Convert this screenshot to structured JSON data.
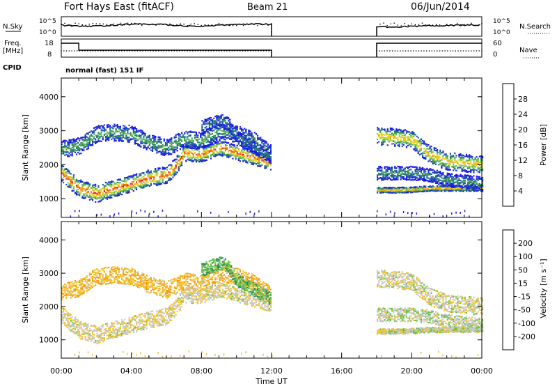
{
  "header": {
    "title": "Fort Hays East (fitACF)",
    "beam": "Beam 21",
    "date": "06/Jun/2014"
  },
  "status_panels": {
    "nsky_label": "N.Sky",
    "nsearch_label": "N.Search",
    "noise_ticks": [
      "10^5",
      "10^0"
    ],
    "freq_label": "Freq.",
    "freq_unit": "[MHz]",
    "freq_ticks": [
      "18",
      "8"
    ],
    "nave_label": "Nave",
    "nave_ticks": [
      "60",
      "0"
    ],
    "cpid_label": "CPID",
    "cpid_text": "normal (fast) 151 IF"
  },
  "x_axis": {
    "label": "Time UT",
    "ticks": [
      "00:00",
      "04:00",
      "08:00",
      "12:00",
      "16:00",
      "20:00",
      "00:00"
    ]
  },
  "colors": {
    "power": [
      "#1a1ae6",
      "#1f4fb4",
      "#2e8b57",
      "#5fb35f",
      "#a8d43c",
      "#f2d21e",
      "#f59a14",
      "#ef5a10",
      "#e0110e"
    ],
    "velocity": [
      "#e01010",
      "#f05a0a",
      "#f59a14",
      "#f2c42a",
      "#c8c8c8",
      "#6bc24a",
      "#2e8b57",
      "#1f4fb4",
      "#1a1ae6"
    ]
  },
  "chart_data": [
    {
      "type": "heatmap",
      "title": "",
      "xlabel": "",
      "ylabel": "Slant Range [km]",
      "xlim": [
        0,
        24
      ],
      "ylim": [
        450,
        4550
      ],
      "yticks": [
        "1000",
        "2000",
        "3000",
        "4000"
      ],
      "colorbar": {
        "label": "Power [dB]",
        "ticks": [
          "28",
          "24",
          "20",
          "16",
          "12",
          "8",
          "4"
        ],
        "range": [
          0,
          32
        ]
      },
      "bands": [
        {
          "t": [
            0,
            1,
            2,
            3,
            4,
            5,
            6,
            6.5,
            7,
            8,
            9,
            10,
            11,
            12
          ],
          "center": [
            1750,
            1300,
            1150,
            1300,
            1450,
            1600,
            1700,
            1950,
            2350,
            2300,
            2500,
            2350,
            2200,
            2050
          ],
          "width": [
            260,
            260,
            260,
            250,
            250,
            250,
            250,
            250,
            250,
            220,
            220,
            220,
            220,
            220
          ],
          "peak_power": 28
        },
        {
          "t": [
            0,
            1,
            2,
            3,
            4,
            5,
            6,
            7,
            8,
            9,
            10,
            11,
            12
          ],
          "center": [
            2450,
            2550,
            2900,
            2950,
            2900,
            2650,
            2500,
            2750,
            2700,
            3000,
            2900,
            2700,
            2300
          ],
          "width": [
            250,
            250,
            250,
            250,
            250,
            250,
            250,
            250,
            250,
            250,
            250,
            250,
            250
          ],
          "peak_power": 12
        },
        {
          "t": [
            8,
            9,
            9.5,
            10,
            11,
            12
          ],
          "center": [
            3100,
            3300,
            3200,
            2800,
            2500,
            2200
          ],
          "width": [
            200,
            200,
            200,
            200,
            200,
            200
          ],
          "peak_power": 8
        },
        {
          "t": [
            18,
            19,
            20,
            21,
            22,
            23,
            24
          ],
          "center": [
            1250,
            1250,
            1260,
            1300,
            1300,
            1300,
            1300
          ],
          "width": [
            80,
            80,
            80,
            80,
            80,
            80,
            80
          ],
          "peak_power": 24
        },
        {
          "t": [
            18,
            19,
            20,
            20.5,
            21,
            22,
            23,
            24
          ],
          "center": [
            2850,
            2800,
            2750,
            2500,
            2300,
            2100,
            2050,
            2000
          ],
          "width": [
            260,
            260,
            260,
            260,
            260,
            260,
            260,
            260
          ],
          "peak_power": 22
        },
        {
          "t": [
            18,
            19,
            20,
            21,
            22,
            24
          ],
          "center": [
            1750,
            1750,
            1750,
            1700,
            1550,
            1450
          ],
          "width": [
            200,
            200,
            200,
            200,
            200,
            200
          ],
          "peak_power": 10
        }
      ],
      "gap_hours": [
        12,
        18
      ]
    },
    {
      "type": "heatmap",
      "title": "",
      "xlabel": "Time UT",
      "ylabel": "Slant Range [km]",
      "xlim": [
        0,
        24
      ],
      "ylim": [
        450,
        4550
      ],
      "yticks": [
        "1000",
        "2000",
        "3000",
        "4000"
      ],
      "colorbar": {
        "label": "Velocity [m s⁻¹]",
        "ticks": [
          "200",
          "100",
          "50",
          "15",
          "-15",
          "-50",
          "-100",
          "-200"
        ],
        "range": [
          -250,
          250
        ]
      },
      "bands": [
        {
          "t": [
            0,
            1,
            2,
            3,
            4,
            5,
            6,
            6.5,
            7,
            8,
            9,
            10,
            11,
            12
          ],
          "center": [
            1750,
            1300,
            1150,
            1300,
            1450,
            1600,
            1700,
            1950,
            2350,
            2300,
            2500,
            2350,
            2200,
            2050
          ],
          "width": [
            260,
            260,
            260,
            250,
            250,
            250,
            250,
            250,
            250,
            220,
            220,
            220,
            220,
            220
          ],
          "velocity": -10
        },
        {
          "t": [
            0,
            1,
            2,
            3,
            4,
            5,
            6,
            7,
            8,
            9,
            10,
            11,
            12
          ],
          "center": [
            2450,
            2550,
            2900,
            2950,
            2900,
            2650,
            2500,
            2750,
            2700,
            3000,
            2900,
            2700,
            2300
          ],
          "width": [
            250,
            250,
            250,
            250,
            250,
            250,
            250,
            250,
            250,
            250,
            250,
            250,
            250
          ],
          "velocity": -40
        },
        {
          "t": [
            8,
            9,
            9.5,
            10,
            11,
            12
          ],
          "center": [
            3100,
            3300,
            3200,
            2800,
            2500,
            2200
          ],
          "width": [
            200,
            200,
            200,
            200,
            200,
            200
          ],
          "velocity": 40
        },
        {
          "t": [
            18,
            19,
            20,
            21,
            22,
            23,
            24
          ],
          "center": [
            1250,
            1250,
            1260,
            1300,
            1300,
            1300,
            1300
          ],
          "width": [
            80,
            80,
            80,
            80,
            80,
            80,
            80
          ],
          "velocity": 0
        },
        {
          "t": [
            18,
            19,
            20,
            20.5,
            21,
            22,
            23,
            24
          ],
          "center": [
            2850,
            2800,
            2750,
            2500,
            2300,
            2100,
            2050,
            2000
          ],
          "width": [
            260,
            260,
            260,
            260,
            260,
            260,
            260,
            260
          ],
          "velocity": -5
        },
        {
          "t": [
            18,
            19,
            20,
            21,
            22,
            24
          ],
          "center": [
            1750,
            1750,
            1750,
            1700,
            1550,
            1450
          ],
          "width": [
            200,
            200,
            200,
            200,
            200,
            200
          ],
          "velocity": 5
        }
      ],
      "gap_hours": [
        12,
        18
      ]
    }
  ]
}
